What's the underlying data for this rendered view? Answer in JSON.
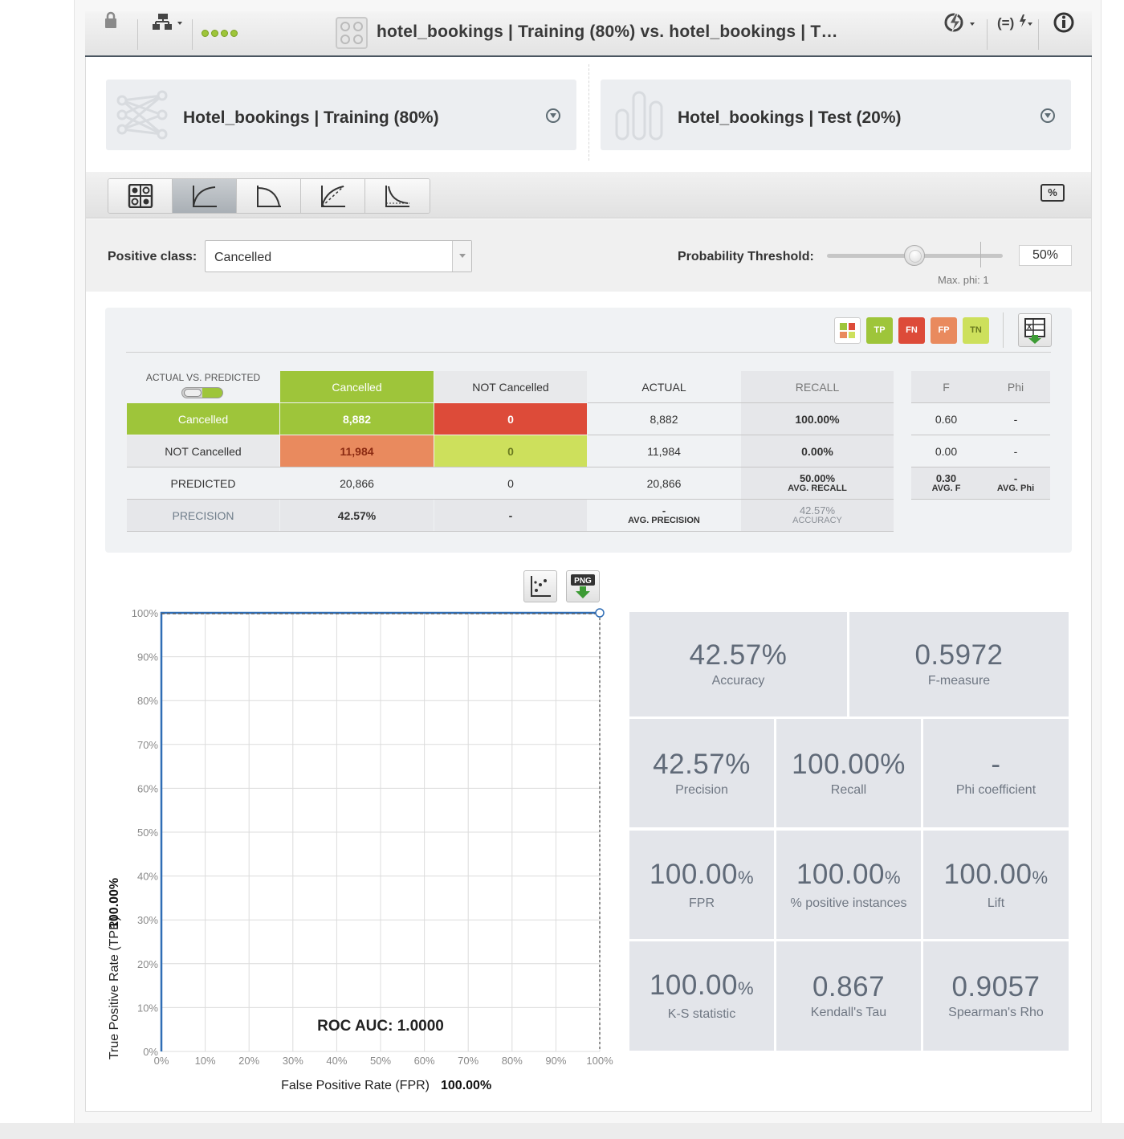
{
  "header": {
    "title": "hotel_bookings | Training (80%) vs. hotel_bookings | T…"
  },
  "datasets": {
    "left": "Hotel_bookings | Training (80%)",
    "right": "Hotel_bookings | Test (20%)"
  },
  "toolbar": {
    "tabs": [
      "confusion-matrix",
      "roc-curve",
      "precision-recall-curve",
      "gain-curve",
      "lift-curve"
    ],
    "active_tab": "roc-curve",
    "percent_icon": "%"
  },
  "positive_class": {
    "label": "Positive class:",
    "value": "Cancelled"
  },
  "threshold": {
    "label": "Probability Threshold:",
    "value": "50%",
    "level": 0.5,
    "max_phi": "Max. phi: 1"
  },
  "legend": {
    "tp": "TP",
    "fn": "FN",
    "fp": "FP",
    "tn": "TN",
    "colors": {
      "tp": "#9ec53a",
      "fn": "#dd4b39",
      "fp": "#e98a5e",
      "tn": "#cde05c"
    }
  },
  "matrix": {
    "corner_label": "ACTUAL VS. PREDICTED",
    "col_cancelled": "Cancelled",
    "col_not_cancelled": "NOT Cancelled",
    "col_actual": "ACTUAL",
    "col_recall": "RECALL",
    "col_f": "F",
    "col_phi": "Phi",
    "row1": {
      "label": "Cancelled",
      "tp": "8,882",
      "fn": "0",
      "actual": "8,882",
      "recall": "100.00%",
      "f": "0.60",
      "phi": "-"
    },
    "row2": {
      "label": "NOT Cancelled",
      "fp": "11,984",
      "tn": "0",
      "actual": "11,984",
      "recall": "0.00%",
      "f": "0.00",
      "phi": "-"
    },
    "predicted": {
      "label": "PREDICTED",
      "c1": "20,866",
      "c2": "0",
      "total": "20,866",
      "avg_recall": "50.00%",
      "avg_recall_label": "AVG. RECALL",
      "avg_f": "0.30",
      "avg_f_label": "AVG. F",
      "avg_phi": "-",
      "avg_phi_label": "AVG. Phi"
    },
    "precision": {
      "label": "PRECISION",
      "c1": "42.57%",
      "c2": "-",
      "avg_precision": "-",
      "avg_precision_label": "AVG. PRECISION",
      "accuracy": "42.57%",
      "accuracy_label": "ACCURACY"
    }
  },
  "chart_buttons": {
    "png": "PNG"
  },
  "chart_data": {
    "type": "line",
    "x": [
      0,
      0,
      100
    ],
    "series": [
      {
        "values": [
          0,
          100,
          100
        ]
      }
    ],
    "xlim": [
      0,
      100
    ],
    "ylim": [
      0,
      100
    ],
    "xticks": [
      "0%",
      "10%",
      "20%",
      "30%",
      "40%",
      "50%",
      "60%",
      "70%",
      "80%",
      "90%",
      "100%"
    ],
    "yticks": [
      "0%",
      "10%",
      "20%",
      "30%",
      "40%",
      "50%",
      "60%",
      "70%",
      "80%",
      "90%",
      "100%"
    ],
    "xlabel": "False Positive Rate (FPR)",
    "xlabel_value": "100.00%",
    "ylabel": "True Positive Rate (TPR)",
    "ylabel_value": "100.00%",
    "annotation": "ROC AUC: 1.0000",
    "grid": true,
    "color": "#2f6db5"
  },
  "metrics": {
    "accuracy": {
      "value": "42.57%",
      "label": "Accuracy"
    },
    "f_measure": {
      "value": "0.5972",
      "label": "F-measure"
    },
    "precision": {
      "value": "42.57%",
      "label": "Precision"
    },
    "recall": {
      "value": "100.00%",
      "label": "Recall"
    },
    "phi": {
      "value": "-",
      "label": "Phi coefficient"
    },
    "fpr": {
      "value": "100.00",
      "unit": "%",
      "label": "FPR"
    },
    "positive_instances": {
      "value": "100.00",
      "unit": "%",
      "label": "% positive instances"
    },
    "lift": {
      "value": "100.00",
      "unit": "%",
      "label": "Lift"
    },
    "ks": {
      "value": "100.00",
      "unit": "%",
      "label": "K-S statistic"
    },
    "kendall": {
      "value": "0.867",
      "label": "Kendall's Tau"
    },
    "spearman": {
      "value": "0.9057",
      "label": "Spearman's Rho"
    }
  }
}
